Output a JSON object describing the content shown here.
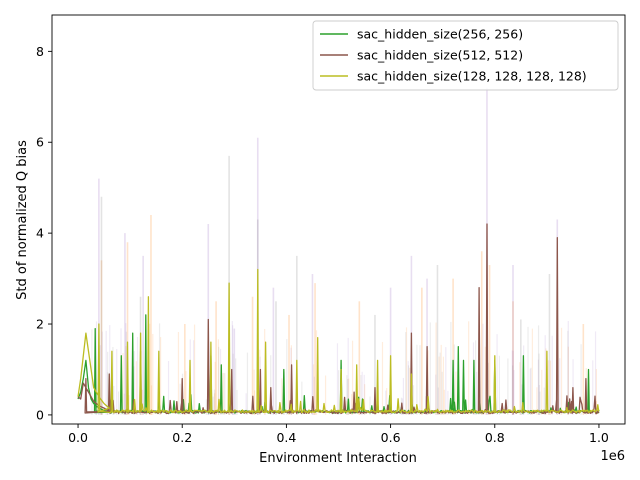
{
  "chart_data": {
    "type": "line",
    "title": "",
    "xlabel": "Environment Interaction",
    "ylabel": "Std of normalized Q bias",
    "x_offset_label": "1e6",
    "xlim": [
      -0.05,
      1.05
    ],
    "ylim": [
      -0.2,
      8.8
    ],
    "x_ticks": [
      0.0,
      0.2,
      0.4,
      0.6,
      0.8,
      1.0
    ],
    "x_tick_labels": [
      "0.0",
      "0.2",
      "0.4",
      "0.6",
      "0.8",
      "1.0"
    ],
    "y_ticks": [
      0,
      2,
      4,
      6,
      8
    ],
    "y_tick_labels": [
      "0",
      "2",
      "4",
      "6",
      "8"
    ],
    "grid": false,
    "legend_position": "top-right",
    "series": [
      {
        "name": "sac_hidden_size(256, 256)",
        "color": "#2ca02c",
        "band_color": "#ff7f0e",
        "baseline": 0.04,
        "start": [
          [
            0.0,
            0.35
          ],
          [
            0.005,
            0.5
          ],
          [
            0.01,
            0.8
          ],
          [
            0.015,
            1.2
          ],
          [
            0.02,
            0.6
          ],
          [
            0.025,
            0.35
          ],
          [
            0.03,
            0.25
          ],
          [
            0.04,
            0.15
          ],
          [
            0.05,
            0.1
          ],
          [
            0.06,
            0.06
          ]
        ],
        "spikes": [
          [
            0.033,
            1.9
          ],
          [
            0.083,
            1.3
          ],
          [
            0.105,
            1.8
          ],
          [
            0.13,
            2.2
          ],
          [
            0.255,
            1.3
          ],
          [
            0.275,
            1.1
          ],
          [
            0.395,
            1.0
          ],
          [
            0.505,
            1.2
          ],
          [
            0.72,
            1.2
          ],
          [
            0.73,
            1.5
          ],
          [
            0.74,
            1.2
          ],
          [
            0.76,
            1.2
          ],
          [
            0.8,
            1.2
          ],
          [
            0.855,
            1.3
          ],
          [
            0.98,
            1.0
          ]
        ],
        "peaks": [
          [
            0.045,
            3.4
          ],
          [
            0.095,
            3.8
          ],
          [
            0.14,
            4.4
          ],
          [
            0.205,
            2.0
          ],
          [
            0.265,
            2.5
          ],
          [
            0.335,
            2.6
          ],
          [
            0.405,
            2.2
          ],
          [
            0.455,
            2.9
          ],
          [
            0.54,
            2.5
          ],
          [
            0.66,
            2.8
          ],
          [
            0.72,
            3.0
          ],
          [
            0.775,
            3.6
          ],
          [
            0.79,
            3.3
          ],
          [
            0.835,
            2.5
          ],
          [
            0.97,
            2.0
          ]
        ]
      },
      {
        "name": "sac_hidden_size(512, 512)",
        "color": "#8c564b",
        "band_color": "#9467bd",
        "baseline": 0.03,
        "start": [
          [
            0.0,
            0.4
          ],
          [
            0.005,
            0.35
          ],
          [
            0.01,
            0.7
          ],
          [
            0.02,
            0.5
          ],
          [
            0.03,
            0.3
          ],
          [
            0.04,
            0.2
          ],
          [
            0.05,
            0.15
          ],
          [
            0.06,
            0.08
          ]
        ],
        "spikes": [
          [
            0.015,
            0.8
          ],
          [
            0.06,
            0.9
          ],
          [
            0.12,
            1.4
          ],
          [
            0.2,
            0.8
          ],
          [
            0.25,
            2.1
          ],
          [
            0.295,
            1.0
          ],
          [
            0.35,
            1.0
          ],
          [
            0.37,
            0.6
          ],
          [
            0.41,
            1.1
          ],
          [
            0.53,
            0.5
          ],
          [
            0.57,
            0.6
          ],
          [
            0.64,
            1.8
          ],
          [
            0.67,
            1.5
          ],
          [
            0.77,
            2.8
          ],
          [
            0.785,
            4.2
          ],
          [
            0.92,
            3.9
          ],
          [
            0.95,
            0.6
          ],
          [
            0.975,
            0.8
          ]
        ],
        "peaks": [
          [
            0.04,
            5.2
          ],
          [
            0.09,
            4.0
          ],
          [
            0.125,
            3.5
          ],
          [
            0.25,
            4.2
          ],
          [
            0.3,
            1.9
          ],
          [
            0.345,
            6.1
          ],
          [
            0.375,
            2.8
          ],
          [
            0.45,
            3.1
          ],
          [
            0.6,
            2.8
          ],
          [
            0.64,
            3.5
          ],
          [
            0.67,
            3.0
          ],
          [
            0.785,
            7.2
          ],
          [
            0.835,
            3.3
          ],
          [
            0.92,
            4.3
          ]
        ]
      },
      {
        "name": "sac_hidden_size(128, 128, 128, 128)",
        "color": "#bcbd22",
        "band_color": "#7f7f7f",
        "baseline": 0.05,
        "start": [
          [
            0.0,
            0.4
          ],
          [
            0.005,
            0.8
          ],
          [
            0.01,
            1.3
          ],
          [
            0.015,
            1.8
          ],
          [
            0.02,
            1.4
          ],
          [
            0.025,
            1.0
          ],
          [
            0.03,
            0.6
          ],
          [
            0.04,
            0.4
          ],
          [
            0.05,
            0.25
          ],
          [
            0.06,
            0.15
          ]
        ],
        "spikes": [
          [
            0.04,
            2.0
          ],
          [
            0.065,
            1.4
          ],
          [
            0.095,
            1.6
          ],
          [
            0.12,
            1.8
          ],
          [
            0.135,
            2.6
          ],
          [
            0.155,
            1.4
          ],
          [
            0.215,
            1.2
          ],
          [
            0.255,
            1.6
          ],
          [
            0.29,
            2.9
          ],
          [
            0.345,
            3.2
          ],
          [
            0.36,
            1.6
          ],
          [
            0.42,
            1.2
          ],
          [
            0.46,
            1.7
          ],
          [
            0.505,
            1.0
          ],
          [
            0.535,
            1.1
          ],
          [
            0.575,
            1.2
          ],
          [
            0.6,
            1.3
          ],
          [
            0.64,
            0.9
          ],
          [
            0.8,
            1.3
          ],
          [
            0.9,
            1.4
          ]
        ],
        "peaks": [
          [
            0.045,
            4.8
          ],
          [
            0.12,
            2.6
          ],
          [
            0.29,
            5.7
          ],
          [
            0.345,
            4.3
          ],
          [
            0.38,
            2.5
          ],
          [
            0.42,
            3.5
          ],
          [
            0.57,
            2.2
          ],
          [
            0.69,
            3.3
          ],
          [
            0.85,
            2.1
          ],
          [
            0.905,
            3.1
          ]
        ]
      }
    ]
  }
}
